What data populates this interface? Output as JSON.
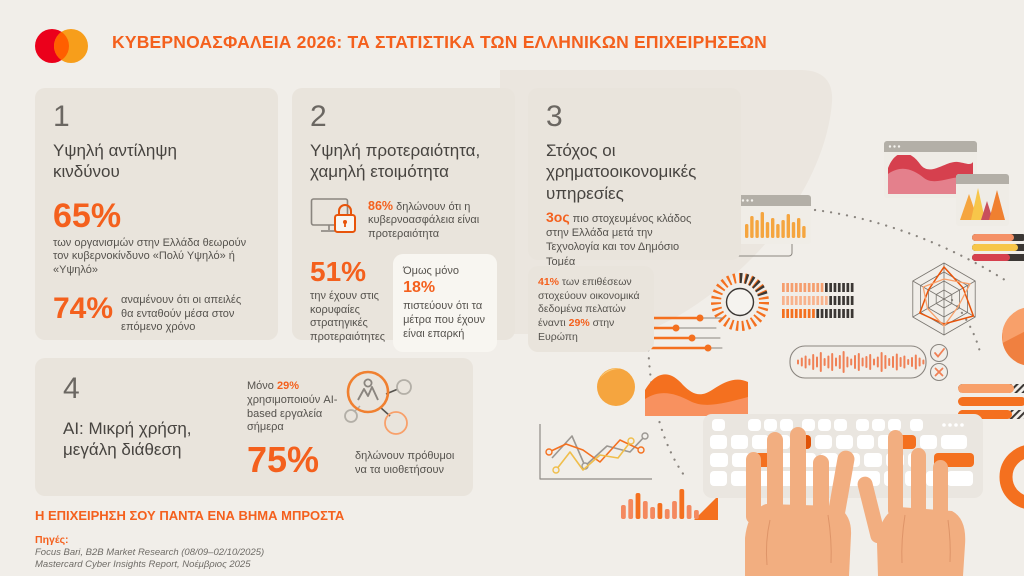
{
  "header": {
    "title": "ΚΥΒΕΡΝΟΑΣΦΑΛΕΙΑ 2026: ΤΑ ΣΤΑΤΙΣΤΙΚΑ ΤΩΝ ΕΛΛΗΝΙΚΩΝ ΕΠΙΧΕΙΡΗΣΕΩΝ",
    "logo": "mastercard-logo"
  },
  "colors": {
    "accent_orange": "#F4601D",
    "mastercard_red": "#EB001B",
    "mastercard_yellow": "#F79E1B",
    "mastercard_overlap": "#FF5F00",
    "card_background": "#E9E4DC",
    "page_background": "#F1EEE9"
  },
  "cards": {
    "card1": {
      "number": "1",
      "title": "Υψηλή αντίληψη κινδύνου",
      "stat1": "65%",
      "stat1_text": "των οργανισμών στην Ελλάδα θεωρούν τον κυβερνοκίνδυνο «Πολύ Υψηλό» ή «Υψηλό»",
      "stat2": "74%",
      "stat2_text": "αναμένουν ότι οι απειλές θα ενταθούν μέσα στον επόμενο χρόνο"
    },
    "card2": {
      "number": "2",
      "title": "Υψηλή προτεραιότητα, χαμηλή ετοιμότητα",
      "monitor_stat": "86%",
      "monitor_text": " δηλώνουν ότι η κυβερνοασφάλεια είναι προτεραιότητα",
      "stat2": "51%",
      "stat2_text": "την έχουν στις κορυφαίες στρατηγικές προτεραιότητες",
      "callout_pre": "Όμως μόνο ",
      "callout_stat": "18%",
      "callout_post": " πιστεύουν ότι τα μέτρα που έχουν είναι επαρκή"
    },
    "card3": {
      "number": "3",
      "title": "Στόχος οι χρηματοοικονομικές υπηρεσίες",
      "rank": "3ος",
      "rank_text": " πιο στοχευμένος κλάδος στην Ελλάδα μετά την Τεχνολογία και τον Δημόσιο Τομέα",
      "lower": {
        "s1": "41%",
        "t1": " των επιθέσεων στοχεύουν οικονομικά δεδομένα πελατών έναντι ",
        "s2": "29%",
        "t2": " στην Ευρώπη"
      }
    },
    "card4": {
      "number": "4",
      "title": "AI: Μικρή χρήση, μεγάλη διάθεση",
      "use_pre": "Μόνο ",
      "use_stat": "29%",
      "use_post": " χρησιμοποιούν AI-based εργαλεία σήμερα",
      "stat2": "75%",
      "stat2_text": "δηλώνουν πρόθυμοι να τα υιοθετήσουν"
    }
  },
  "footer": {
    "tagline": "Η ΕΠΙΧΕΙΡΗΣΗ ΣΟΥ ΠΑΝΤΑ ΕΝΑ ΒΗΜΑ ΜΠΡΟΣΤΑ",
    "sources_label": "Πηγές:",
    "source1": "Focus Bari, B2B Market Research (08/09–02/10/2025)",
    "source2": "Mastercard Cyber Insights Report, Νοέμβριος 2025"
  },
  "icons": {
    "logo": "mastercard-logo",
    "card2_icon": "monitor-lock-icon",
    "card4_icon": "ai-network-icon",
    "approve": "check-icon",
    "reject": "cross-icon"
  }
}
